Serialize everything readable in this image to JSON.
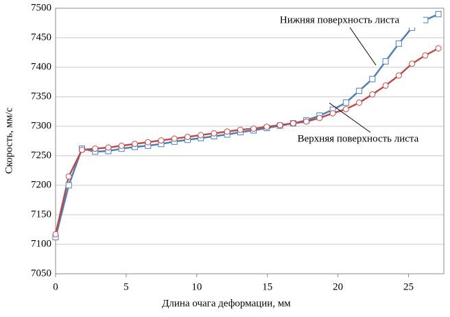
{
  "chart_data": {
    "type": "line",
    "x_label": "Длина очага деформации, мм",
    "y_label": "Скорость, мм/с",
    "x": [
      0,
      0.935,
      1.87,
      2.805,
      3.74,
      4.675,
      5.61,
      6.545,
      7.48,
      8.415,
      9.35,
      10.285,
      11.22,
      12.155,
      13.09,
      14.025,
      14.96,
      15.895,
      16.83,
      17.765,
      18.7,
      19.635,
      20.57,
      21.505,
      22.44,
      23.375,
      24.31,
      25.245,
      26.18,
      27.115
    ],
    "series": [
      {
        "name": "Нижняя поверхность листа",
        "color": "#4a7ebb",
        "marker": "square",
        "values": [
          7112,
          7200,
          7262,
          7257,
          7258,
          7262,
          7265,
          7267,
          7270,
          7274,
          7277,
          7280,
          7283,
          7286,
          7290,
          7293,
          7297,
          7301,
          7305,
          7310,
          7318,
          7328,
          7340,
          7360,
          7380,
          7410,
          7440,
          7467,
          7480,
          7490
        ]
      },
      {
        "name": "Верхняя поверхность листа",
        "color": "#be4b48",
        "marker": "circle",
        "values": [
          7117,
          7215,
          7260,
          7262,
          7264,
          7267,
          7270,
          7273,
          7276,
          7279,
          7282,
          7285,
          7288,
          7291,
          7294,
          7296,
          7299,
          7302,
          7305,
          7308,
          7314,
          7322,
          7329,
          7340,
          7354,
          7369,
          7386,
          7406,
          7420,
          7432
        ]
      }
    ],
    "xlim": [
      0,
      27.5
    ],
    "xticks": [
      0,
      5,
      10,
      15,
      20,
      25
    ],
    "ylim": [
      7050,
      7500
    ],
    "yticks": [
      7050,
      7100,
      7150,
      7200,
      7250,
      7300,
      7350,
      7400,
      7450,
      7500
    ],
    "grid": true
  }
}
